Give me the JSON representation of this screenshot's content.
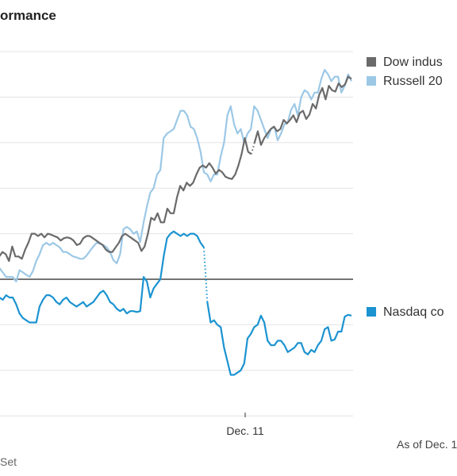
{
  "title": "ormance",
  "note": "As of Dec. 1",
  "source": "Set",
  "chart_data": {
    "type": "line",
    "x_tick_labels": [
      "Dec. 11"
    ],
    "y_range": [
      -3,
      5
    ],
    "y_gridlines": [
      -3,
      -2,
      -1,
      0,
      1,
      2,
      3,
      4,
      5
    ],
    "grid": true,
    "legend_placement": "right",
    "series": [
      {
        "name": "Dow indus",
        "color": "#6a6a6a",
        "values": [
          0.45,
          0.5,
          0.6,
          0.55,
          0.4,
          0.72,
          0.5,
          0.5,
          0.45,
          0.65,
          0.8,
          1.0,
          1.0,
          0.95,
          1.0,
          0.92,
          1.0,
          0.98,
          0.95,
          0.92,
          0.85,
          0.9,
          0.92,
          0.9,
          0.85,
          0.75,
          0.78,
          0.9,
          0.95,
          0.95,
          0.9,
          0.85,
          0.8,
          0.75,
          0.65,
          0.6,
          0.6,
          0.7,
          0.8,
          0.95,
          1.0,
          0.95,
          0.9,
          0.85,
          0.8,
          0.62,
          0.72,
          1.0,
          1.35,
          1.3,
          1.45,
          1.25,
          1.25,
          1.55,
          1.45,
          1.45,
          1.8,
          2.05,
          1.95,
          2.12,
          2.05,
          2.12,
          2.3,
          2.45,
          2.5,
          2.45,
          2.55,
          2.45,
          2.32,
          2.4,
          2.35,
          2.25,
          2.22,
          2.2,
          2.3,
          2.5,
          2.75,
          3.1,
          2.8,
          2.75,
          3.0,
          3.25,
          2.95,
          3.1,
          3.2,
          3.3,
          3.35,
          3.25,
          3.3,
          3.5,
          3.42,
          3.5,
          3.6,
          3.45,
          3.65,
          3.7,
          3.52,
          3.62,
          3.85,
          3.75,
          4.05,
          4.2,
          3.95,
          4.25,
          4.15,
          4.12,
          4.3,
          4.22,
          4.28,
          4.45,
          4.4
        ],
        "gap_after_index": 79
      },
      {
        "name": "Russell 20",
        "color": "#9cc8e6",
        "values": [
          0.35,
          0.25,
          0.15,
          0.05,
          0.05,
          0.05,
          -0.05,
          0.2,
          0.15,
          0.1,
          0.05,
          0.18,
          0.4,
          0.55,
          0.75,
          0.8,
          0.75,
          0.8,
          0.75,
          0.7,
          0.6,
          0.6,
          0.55,
          0.5,
          0.48,
          0.45,
          0.45,
          0.52,
          0.62,
          0.72,
          0.8,
          0.78,
          0.75,
          0.7,
          0.6,
          0.42,
          0.35,
          0.55,
          1.1,
          1.15,
          1.1,
          1.0,
          1.05,
          0.82,
          1.25,
          1.6,
          1.9,
          2.0,
          2.3,
          2.4,
          3.1,
          3.2,
          3.25,
          3.3,
          3.5,
          3.7,
          3.7,
          3.6,
          3.35,
          3.3,
          3.1,
          2.8,
          2.35,
          2.3,
          2.15,
          2.3,
          2.3,
          2.7,
          3.0,
          3.6,
          3.8,
          3.4,
          3.2,
          3.3,
          3.0,
          3.2,
          3.3,
          3.8,
          3.7,
          3.5,
          3.3,
          3.1,
          3.3,
          3.35,
          3.05,
          3.2,
          3.4,
          3.45,
          3.72,
          3.85,
          3.6,
          4.0,
          4.15,
          4.1,
          3.95,
          4.1,
          4.1,
          4.4,
          4.6,
          4.5,
          4.35,
          4.45,
          4.45,
          4.1,
          4.25,
          4.5,
          4.35
        ]
      },
      {
        "name": "Nasdaq co",
        "color": "#1b93d1",
        "values": [
          -0.35,
          -0.4,
          -0.45,
          -0.35,
          -0.4,
          -0.4,
          -0.55,
          -0.75,
          -0.85,
          -0.9,
          -0.95,
          -0.95,
          -0.95,
          -0.6,
          -0.45,
          -0.35,
          -0.35,
          -0.4,
          -0.5,
          -0.55,
          -0.45,
          -0.4,
          -0.5,
          -0.55,
          -0.6,
          -0.55,
          -0.5,
          -0.6,
          -0.55,
          -0.5,
          -0.4,
          -0.3,
          -0.25,
          -0.35,
          -0.5,
          -0.55,
          -0.65,
          -0.7,
          -0.65,
          -0.75,
          -0.7,
          -0.7,
          -0.72,
          -0.7,
          0.05,
          -0.05,
          -0.4,
          -0.2,
          -0.1,
          0.0,
          0.5,
          0.9,
          1.0,
          1.05,
          1.0,
          0.95,
          1.0,
          0.95,
          1.0,
          1.0,
          0.95,
          0.8,
          0.7,
          -0.5,
          -0.95,
          -0.9,
          -1.0,
          -1.05,
          -1.5,
          -1.8,
          -2.1,
          -2.1,
          -2.05,
          -2.0,
          -1.85,
          -1.3,
          -1.2,
          -1.05,
          -1.0,
          -0.8,
          -0.95,
          -1.35,
          -1.45,
          -1.45,
          -1.35,
          -1.35,
          -1.45,
          -1.6,
          -1.55,
          -1.5,
          -1.4,
          -1.4,
          -1.6,
          -1.65,
          -1.55,
          -1.6,
          -1.45,
          -1.35,
          -1.1,
          -1.05,
          -1.35,
          -1.32,
          -1.15,
          -1.15,
          -0.82,
          -0.78,
          -0.8
        ],
        "gap_after_index": 62
      }
    ]
  }
}
